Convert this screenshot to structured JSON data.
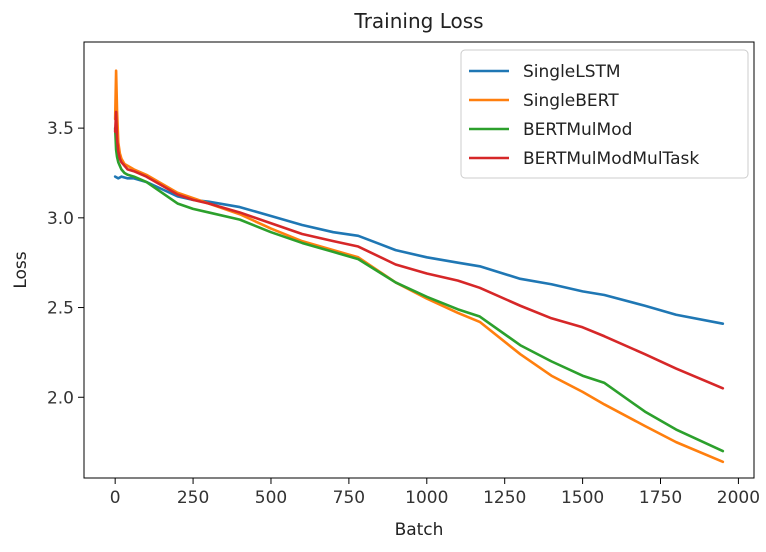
{
  "chart_data": {
    "type": "line",
    "title": "Training Loss",
    "xlabel": "Batch",
    "ylabel": "Loss",
    "xlim": [
      -100,
      2050
    ],
    "ylim": [
      1.55,
      3.98
    ],
    "xticks": [
      0,
      250,
      500,
      750,
      1000,
      1250,
      1500,
      1750,
      2000
    ],
    "yticks": [
      2.0,
      2.5,
      3.0,
      3.5
    ],
    "xtick_labels": [
      "0",
      "250",
      "500",
      "750",
      "1000",
      "1250",
      "1500",
      "1750",
      "2000"
    ],
    "ytick_labels": [
      "2.0",
      "2.5",
      "3.0",
      "3.5"
    ],
    "grid": false,
    "legend_position": "top-right",
    "series": [
      {
        "name": "SingleLSTM",
        "color": "#1f77b4",
        "x": [
          0,
          10,
          20,
          40,
          60,
          100,
          150,
          200,
          250,
          300,
          400,
          500,
          600,
          700,
          780,
          900,
          1000,
          1100,
          1170,
          1300,
          1400,
          1500,
          1570,
          1700,
          1800,
          1950
        ],
        "y": [
          3.23,
          3.22,
          3.23,
          3.22,
          3.22,
          3.2,
          3.16,
          3.12,
          3.1,
          3.09,
          3.06,
          3.01,
          2.96,
          2.92,
          2.9,
          2.82,
          2.78,
          2.75,
          2.73,
          2.66,
          2.63,
          2.59,
          2.57,
          2.51,
          2.46,
          2.41
        ]
      },
      {
        "name": "SingleBERT",
        "color": "#ff7f0e",
        "x": [
          0,
          3,
          6,
          10,
          15,
          20,
          30,
          40,
          60,
          100,
          150,
          200,
          250,
          300,
          400,
          500,
          600,
          700,
          780,
          900,
          1000,
          1100,
          1170,
          1300,
          1400,
          1500,
          1570,
          1700,
          1800,
          1950
        ],
        "y": [
          3.55,
          3.82,
          3.6,
          3.42,
          3.36,
          3.33,
          3.3,
          3.29,
          3.27,
          3.24,
          3.19,
          3.14,
          3.11,
          3.08,
          3.02,
          2.94,
          2.87,
          2.82,
          2.78,
          2.64,
          2.55,
          2.47,
          2.42,
          2.24,
          2.12,
          2.03,
          1.96,
          1.84,
          1.75,
          1.64
        ]
      },
      {
        "name": "BERTMulMod",
        "color": "#2ca02c",
        "x": [
          0,
          3,
          6,
          10,
          15,
          20,
          30,
          40,
          60,
          100,
          150,
          200,
          250,
          300,
          400,
          500,
          600,
          700,
          780,
          900,
          1000,
          1100,
          1170,
          1300,
          1400,
          1500,
          1570,
          1700,
          1800,
          1950
        ],
        "y": [
          3.5,
          3.38,
          3.34,
          3.31,
          3.29,
          3.27,
          3.25,
          3.24,
          3.23,
          3.2,
          3.14,
          3.08,
          3.05,
          3.03,
          2.99,
          2.92,
          2.86,
          2.81,
          2.77,
          2.64,
          2.56,
          2.49,
          2.45,
          2.29,
          2.2,
          2.12,
          2.08,
          1.92,
          1.82,
          1.7
        ]
      },
      {
        "name": "BERTMulModMulTask",
        "color": "#d62728",
        "x": [
          0,
          3,
          6,
          10,
          15,
          20,
          30,
          40,
          60,
          100,
          150,
          200,
          250,
          300,
          400,
          500,
          600,
          700,
          780,
          900,
          1000,
          1100,
          1170,
          1300,
          1400,
          1500,
          1570,
          1700,
          1800,
          1950
        ],
        "y": [
          3.48,
          3.59,
          3.44,
          3.37,
          3.33,
          3.31,
          3.29,
          3.27,
          3.26,
          3.23,
          3.18,
          3.13,
          3.1,
          3.08,
          3.03,
          2.97,
          2.91,
          2.87,
          2.84,
          2.74,
          2.69,
          2.65,
          2.61,
          2.51,
          2.44,
          2.39,
          2.34,
          2.24,
          2.16,
          2.05
        ]
      }
    ]
  }
}
